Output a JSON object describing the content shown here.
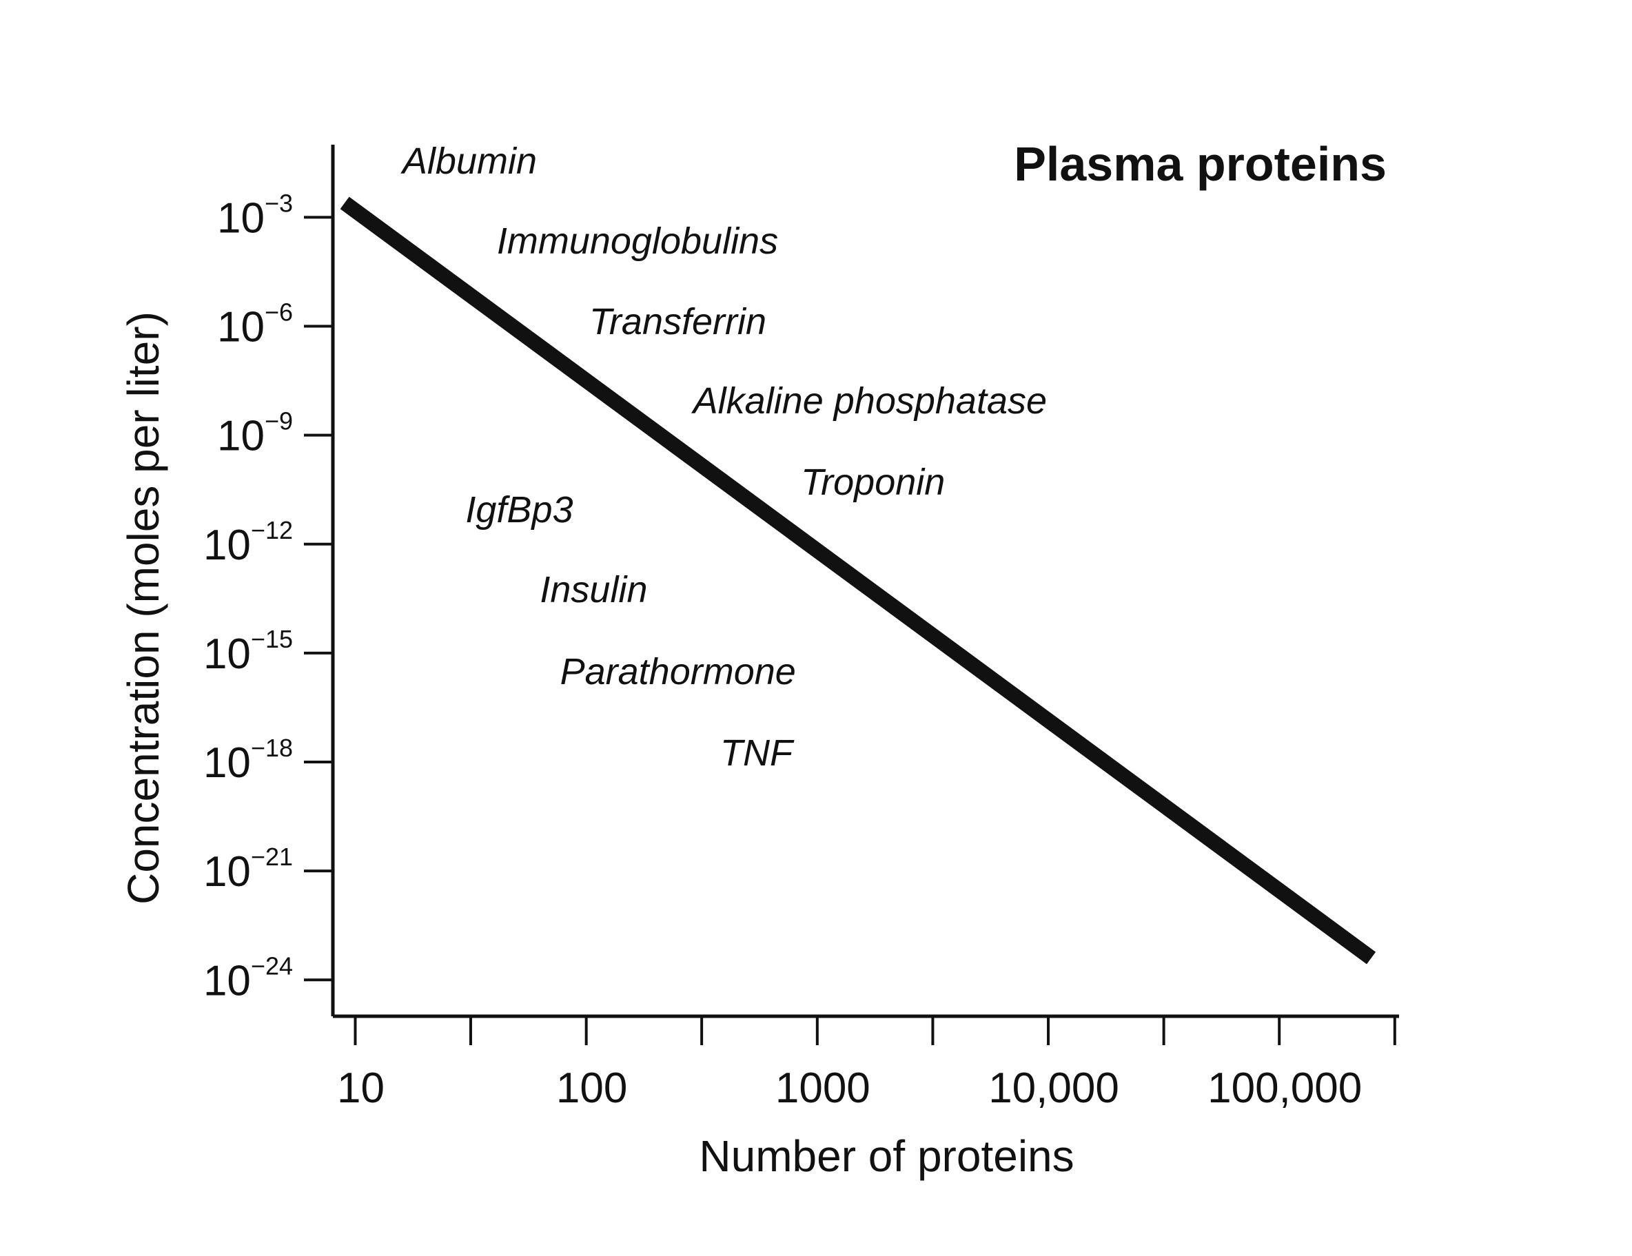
{
  "chart_data": {
    "type": "line",
    "title": "Plasma proteins",
    "xlabel": "Number of proteins",
    "ylabel": "Concentration (moles per liter)",
    "x_scale": "log",
    "y_scale": "log",
    "xlim": [
      8,
      330000
    ],
    "ylim": [
      1e-25,
      0.1
    ],
    "x_ticks": [
      10,
      31.6,
      100,
      316,
      1000,
      3162,
      10000,
      31623,
      100000,
      316228
    ],
    "x_tick_labels": [
      "10",
      "",
      "100",
      "",
      "1000",
      "",
      "10,000",
      "",
      "100,000",
      ""
    ],
    "y_ticks": [
      {
        "base": "10",
        "exponent": "−3",
        "value": 0.001
      },
      {
        "base": "10",
        "exponent": "−6",
        "value": 1e-06
      },
      {
        "base": "10",
        "exponent": "−9",
        "value": 1e-09
      },
      {
        "base": "10",
        "exponent": "−12",
        "value": 1e-12
      },
      {
        "base": "10",
        "exponent": "−15",
        "value": 1e-15
      },
      {
        "base": "10",
        "exponent": "−18",
        "value": 1e-18
      },
      {
        "base": "10",
        "exponent": "−21",
        "value": 1e-21
      },
      {
        "base": "10",
        "exponent": "−24",
        "value": 1e-24
      }
    ],
    "series": [
      {
        "x": [
          9,
          250000
        ],
        "y": [
          0.0025,
          4e-24
        ]
      }
    ],
    "annotations": [
      {
        "text": "Albumin",
        "x": 16,
        "y": 0.016
      },
      {
        "text": "Immunoglobulins",
        "x": 41,
        "y": 0.0001
      },
      {
        "text": "Transferrin",
        "x": 103,
        "y": 6e-07
      },
      {
        "text": "Alkaline phosphatase",
        "x": 290,
        "y": 4e-09
      },
      {
        "text": "Troponin",
        "x": 850,
        "y": 2.3e-11
      },
      {
        "text": "IgfBp3",
        "x": 30,
        "y": 4e-12
      },
      {
        "text": "Insulin",
        "x": 63,
        "y": 2.5e-14
      },
      {
        "text": "Parathormone",
        "x": 77,
        "y": 1.4e-16
      },
      {
        "text": "TNF",
        "x": 380,
        "y": 8e-19
      }
    ],
    "grid": false,
    "legend": "none"
  }
}
